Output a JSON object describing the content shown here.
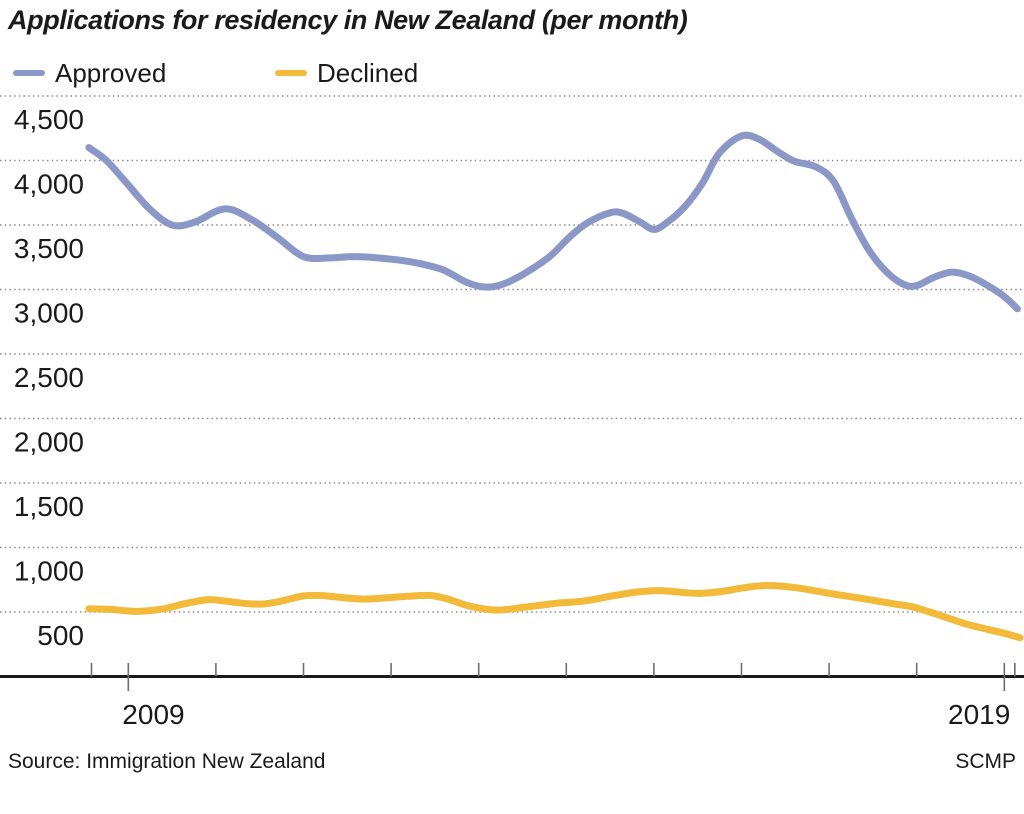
{
  "title": "Applications for residency in New Zealand (per month)",
  "legend": {
    "items": [
      {
        "label": "Approved",
        "color": "#8b97c7"
      },
      {
        "label": "Declined",
        "color": "#f2ba38"
      }
    ]
  },
  "footer": {
    "source": "Source: Immigration New Zealand",
    "credit": "SCMP"
  },
  "chart_data": {
    "type": "line",
    "title": "Applications for residency in New Zealand (per month)",
    "xlabel": "",
    "ylabel": "",
    "x_axis": {
      "range": [
        2008.45,
        2019.25
      ],
      "year_ticks": [
        2009,
        2010,
        2011,
        2012,
        2013,
        2014,
        2015,
        2016,
        2017,
        2018,
        2019
      ],
      "edge_tick_years": [
        2008.58,
        2019.12
      ],
      "labeled_ticks": [
        2009,
        2019
      ],
      "labels": {
        "left": "2009",
        "right": "2019"
      }
    },
    "y_axis": {
      "range": [
        0,
        4650
      ],
      "ticks": [
        500,
        1000,
        1500,
        2000,
        2500,
        3000,
        3500,
        4000,
        4500
      ],
      "tick_labels": [
        "500",
        "1,000",
        "1,500",
        "2,000",
        "2,500",
        "3,000",
        "3,500",
        "4,000",
        "4,500"
      ],
      "gridlines": "dotted"
    },
    "legend_position": "top-left",
    "series": [
      {
        "name": "Approved",
        "color": "#8b97c7",
        "points": [
          [
            2008.55,
            4100
          ],
          [
            2008.75,
            4000
          ],
          [
            2009.0,
            3810
          ],
          [
            2009.25,
            3620
          ],
          [
            2009.5,
            3500
          ],
          [
            2009.75,
            3520
          ],
          [
            2010.1,
            3625
          ],
          [
            2010.4,
            3545
          ],
          [
            2010.7,
            3405
          ],
          [
            2011.0,
            3255
          ],
          [
            2011.3,
            3245
          ],
          [
            2011.6,
            3255
          ],
          [
            2012.0,
            3235
          ],
          [
            2012.3,
            3205
          ],
          [
            2012.6,
            3150
          ],
          [
            2012.85,
            3060
          ],
          [
            2013.05,
            3020
          ],
          [
            2013.25,
            3035
          ],
          [
            2013.5,
            3115
          ],
          [
            2013.8,
            3250
          ],
          [
            2014.05,
            3415
          ],
          [
            2014.25,
            3520
          ],
          [
            2014.5,
            3595
          ],
          [
            2014.65,
            3590
          ],
          [
            2014.85,
            3520
          ],
          [
            2015.0,
            3465
          ],
          [
            2015.15,
            3520
          ],
          [
            2015.35,
            3640
          ],
          [
            2015.55,
            3820
          ],
          [
            2015.75,
            4060
          ],
          [
            2016.0,
            4190
          ],
          [
            2016.2,
            4165
          ],
          [
            2016.4,
            4075
          ],
          [
            2016.6,
            3995
          ],
          [
            2016.85,
            3950
          ],
          [
            2017.05,
            3840
          ],
          [
            2017.25,
            3560
          ],
          [
            2017.45,
            3310
          ],
          [
            2017.65,
            3140
          ],
          [
            2017.85,
            3040
          ],
          [
            2018.0,
            3030
          ],
          [
            2018.2,
            3095
          ],
          [
            2018.4,
            3135
          ],
          [
            2018.6,
            3105
          ],
          [
            2018.8,
            3035
          ],
          [
            2019.0,
            2945
          ],
          [
            2019.15,
            2850
          ]
        ]
      },
      {
        "name": "Declined",
        "color": "#f2ba38",
        "points": [
          [
            2008.55,
            525
          ],
          [
            2008.8,
            520
          ],
          [
            2009.1,
            505
          ],
          [
            2009.4,
            525
          ],
          [
            2009.65,
            565
          ],
          [
            2009.9,
            595
          ],
          [
            2010.1,
            585
          ],
          [
            2010.35,
            565
          ],
          [
            2010.55,
            562
          ],
          [
            2010.75,
            585
          ],
          [
            2011.0,
            625
          ],
          [
            2011.2,
            628
          ],
          [
            2011.45,
            612
          ],
          [
            2011.7,
            600
          ],
          [
            2011.95,
            610
          ],
          [
            2012.2,
            622
          ],
          [
            2012.45,
            628
          ],
          [
            2012.65,
            600
          ],
          [
            2012.9,
            545
          ],
          [
            2013.2,
            515
          ],
          [
            2013.5,
            535
          ],
          [
            2013.85,
            565
          ],
          [
            2014.2,
            585
          ],
          [
            2014.55,
            628
          ],
          [
            2014.85,
            658
          ],
          [
            2015.1,
            665
          ],
          [
            2015.35,
            650
          ],
          [
            2015.55,
            645
          ],
          [
            2015.8,
            662
          ],
          [
            2016.0,
            685
          ],
          [
            2016.25,
            705
          ],
          [
            2016.5,
            698
          ],
          [
            2016.75,
            675
          ],
          [
            2017.0,
            645
          ],
          [
            2017.3,
            613
          ],
          [
            2017.55,
            585
          ],
          [
            2017.75,
            562
          ],
          [
            2017.95,
            540
          ],
          [
            2018.15,
            500
          ],
          [
            2018.35,
            455
          ],
          [
            2018.55,
            410
          ],
          [
            2018.75,
            375
          ],
          [
            2019.0,
            335
          ],
          [
            2019.18,
            300
          ]
        ]
      }
    ],
    "source": "Immigration New Zealand",
    "credit": "SCMP"
  },
  "style": {
    "grid_color": "#8a8a8a",
    "axis_color": "#1a1a1a",
    "tick_color": "#6e6e6e",
    "text_color": "#1a1a1a"
  }
}
